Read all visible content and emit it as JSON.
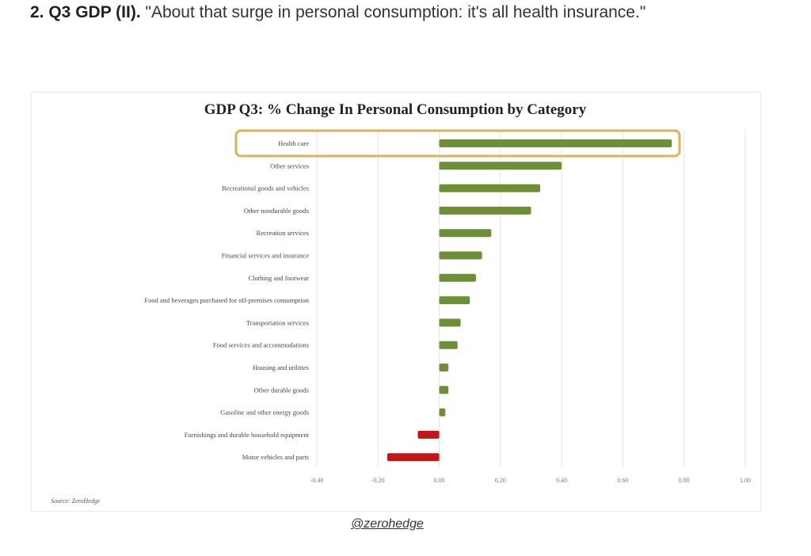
{
  "heading": {
    "number": "2. Q3 GDP (II).",
    "quote": " \"About that surge in personal consumption: it's all health insurance.\""
  },
  "handle": "@zerohedge",
  "colors": {
    "positive": "#6f8e3a",
    "negative": "#c0161c",
    "highlight": "#d8b45c",
    "grid": "#e4e4e4"
  },
  "chart_data": {
    "type": "bar",
    "orientation": "horizontal",
    "title": "GDP Q3: % Change In Personal Consumption by Category",
    "source": "Source: ZeroHedge",
    "categories": [
      "Health care",
      "Other services",
      "Recreational goods and vehicles",
      "Other nondurable goods",
      "Recreation services",
      "Financial services and insurance",
      "Clothing and footwear",
      "Food and beverages purchased for off-premises consumption",
      "Transportation services",
      "Food services and accommodations",
      "Housing and utilities",
      "Other durable goods",
      "Gasoline and other energy goods",
      "Furnishings and durable household equipment",
      "Motor vehicles and parts"
    ],
    "values": [
      0.76,
      0.4,
      0.33,
      0.3,
      0.17,
      0.14,
      0.12,
      0.1,
      0.07,
      0.06,
      0.03,
      0.03,
      0.02,
      -0.07,
      -0.17
    ],
    "highlighted_category": "Health care",
    "xlim": [
      -0.4,
      1.0
    ],
    "xticks": [
      -0.4,
      -0.2,
      0.0,
      0.2,
      0.4,
      0.6,
      0.8,
      1.0
    ],
    "xtick_labels": [
      "-0.40",
      "-0.20",
      "0.00",
      "0.20",
      "0.40",
      "0.60",
      "0.80",
      "1.00"
    ],
    "xlabel": "",
    "ylabel": "",
    "grid": "vertical",
    "legend": "none"
  }
}
